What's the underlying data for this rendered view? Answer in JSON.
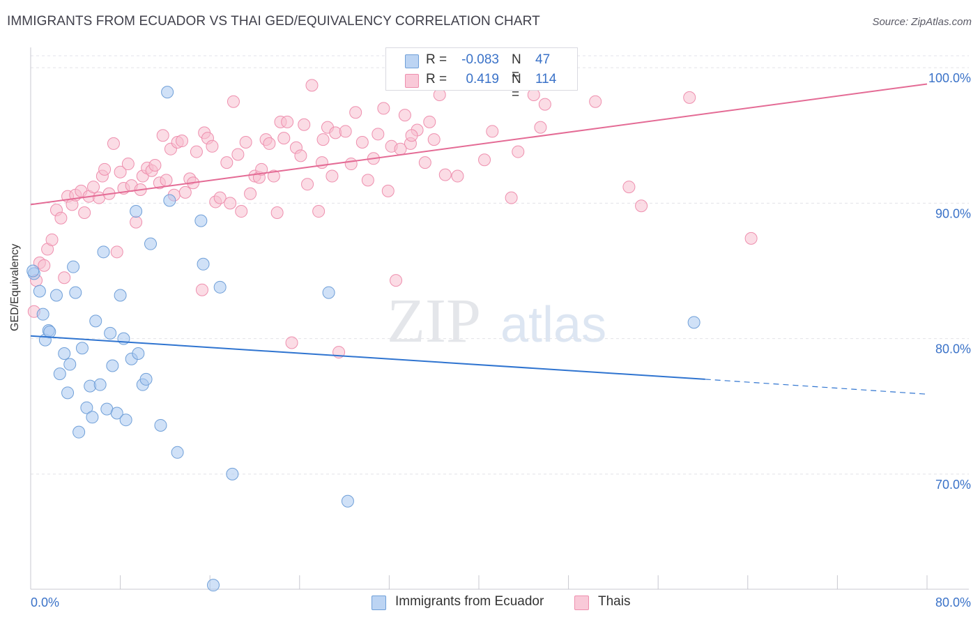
{
  "title": "IMMIGRANTS FROM ECUADOR VS THAI GED/EQUIVALENCY CORRELATION CHART",
  "source": "Source: ZipAtlas.com",
  "watermark": {
    "zip": "ZIP",
    "atlas": "atlas"
  },
  "legend": {
    "r_label": "R =",
    "n_label": "N =",
    "series": [
      {
        "r": "-0.083",
        "n": "47"
      },
      {
        "r": "0.419",
        "n": "114"
      }
    ]
  },
  "bottom_legend": [
    "Immigrants from Ecuador",
    "Thais"
  ],
  "colors": {
    "ecuador_fill": "#aac8f0",
    "ecuador_stroke": "#6f9fd8",
    "ecuador_line": "#2f74d0",
    "thai_fill": "#f7bfd0",
    "thai_stroke": "#ee8fae",
    "thai_line": "#e46b95",
    "axis_text": "#3a72c8",
    "grid": "#e2e2e8"
  },
  "chart_data": {
    "type": "scatter",
    "title": "IMMIGRANTS FROM ECUADOR VS THAI GED/EQUIVALENCY CORRELATION CHART",
    "xlabel": "",
    "ylabel": "GED/Equivalency",
    "xlim": [
      0,
      80
    ],
    "ylim": [
      61.5,
      101.5
    ],
    "x_tick_labels": [
      "0.0%",
      "80.0%"
    ],
    "y_ticks": [
      70,
      80,
      90,
      100
    ],
    "y_tick_labels": [
      "70.0%",
      "80.0%",
      "90.0%",
      "100.0%"
    ],
    "grid": "horizontal dashed",
    "legend_position": "top-center",
    "series": [
      {
        "name": "Immigrants from Ecuador",
        "r": -0.083,
        "n": 47,
        "trend": {
          "x0": 0,
          "y0": 80.2,
          "x1": 60.2,
          "y1": 77.0,
          "dashed_to_x": 80,
          "dashed_to_y": 75.9
        },
        "points": [
          [
            0.3,
            84.8
          ],
          [
            0.8,
            83.5
          ],
          [
            1.1,
            81.8
          ],
          [
            1.3,
            79.9
          ],
          [
            1.6,
            80.6
          ],
          [
            1.7,
            80.5
          ],
          [
            2.3,
            83.2
          ],
          [
            2.6,
            77.4
          ],
          [
            3.0,
            78.9
          ],
          [
            3.3,
            76.0
          ],
          [
            3.5,
            78.1
          ],
          [
            3.8,
            85.3
          ],
          [
            4.0,
            83.4
          ],
          [
            4.3,
            73.1
          ],
          [
            4.6,
            79.3
          ],
          [
            5.0,
            74.9
          ],
          [
            5.3,
            76.5
          ],
          [
            5.5,
            74.2
          ],
          [
            5.8,
            81.3
          ],
          [
            6.2,
            76.6
          ],
          [
            6.5,
            86.4
          ],
          [
            6.8,
            74.8
          ],
          [
            7.1,
            80.4
          ],
          [
            7.3,
            78.0
          ],
          [
            7.7,
            74.5
          ],
          [
            8.0,
            83.2
          ],
          [
            8.3,
            80.0
          ],
          [
            8.5,
            74.0
          ],
          [
            9.0,
            78.5
          ],
          [
            9.4,
            89.4
          ],
          [
            9.6,
            78.9
          ],
          [
            10.0,
            76.6
          ],
          [
            10.3,
            77.0
          ],
          [
            10.7,
            87.0
          ],
          [
            11.6,
            73.6
          ],
          [
            12.2,
            98.2
          ],
          [
            12.4,
            90.2
          ],
          [
            13.1,
            71.6
          ],
          [
            15.2,
            88.7
          ],
          [
            15.4,
            85.5
          ],
          [
            16.3,
            61.8
          ],
          [
            16.9,
            83.8
          ],
          [
            18.0,
            70.0
          ],
          [
            26.6,
            83.4
          ],
          [
            28.3,
            68.0
          ],
          [
            59.2,
            81.2
          ],
          [
            0.2,
            85.0
          ]
        ]
      },
      {
        "name": "Thais",
        "r": 0.419,
        "n": 114,
        "trend": {
          "x0": 0,
          "y0": 89.9,
          "x1": 80,
          "y1": 98.8
        },
        "points": [
          [
            0.3,
            82.0
          ],
          [
            0.5,
            84.3
          ],
          [
            0.8,
            85.6
          ],
          [
            1.2,
            85.4
          ],
          [
            1.5,
            86.6
          ],
          [
            1.9,
            87.3
          ],
          [
            2.3,
            89.5
          ],
          [
            2.7,
            88.9
          ],
          [
            3.0,
            84.5
          ],
          [
            3.3,
            90.5
          ],
          [
            3.7,
            89.9
          ],
          [
            4.0,
            90.6
          ],
          [
            4.5,
            90.9
          ],
          [
            4.8,
            89.3
          ],
          [
            5.2,
            90.5
          ],
          [
            5.6,
            91.2
          ],
          [
            6.1,
            90.4
          ],
          [
            6.4,
            92.0
          ],
          [
            6.6,
            92.5
          ],
          [
            7.0,
            90.7
          ],
          [
            7.4,
            94.4
          ],
          [
            7.7,
            86.4
          ],
          [
            8.0,
            92.3
          ],
          [
            8.3,
            91.1
          ],
          [
            8.7,
            92.9
          ],
          [
            9.0,
            91.3
          ],
          [
            9.4,
            88.6
          ],
          [
            9.8,
            91.0
          ],
          [
            10.0,
            92.0
          ],
          [
            10.4,
            92.6
          ],
          [
            10.8,
            92.4
          ],
          [
            11.1,
            92.8
          ],
          [
            11.5,
            91.5
          ],
          [
            11.8,
            95.0
          ],
          [
            12.1,
            91.7
          ],
          [
            12.5,
            94.0
          ],
          [
            12.8,
            90.6
          ],
          [
            13.1,
            94.5
          ],
          [
            13.5,
            94.6
          ],
          [
            13.8,
            90.8
          ],
          [
            14.2,
            91.8
          ],
          [
            14.5,
            91.5
          ],
          [
            14.8,
            93.8
          ],
          [
            15.3,
            83.6
          ],
          [
            15.5,
            95.2
          ],
          [
            15.8,
            94.8
          ],
          [
            16.2,
            94.2
          ],
          [
            16.5,
            90.1
          ],
          [
            16.9,
            90.4
          ],
          [
            17.5,
            93.0
          ],
          [
            17.8,
            90.0
          ],
          [
            18.1,
            97.5
          ],
          [
            18.5,
            93.6
          ],
          [
            18.8,
            89.4
          ],
          [
            19.2,
            94.5
          ],
          [
            19.6,
            90.7
          ],
          [
            20.0,
            92.0
          ],
          [
            20.4,
            91.9
          ],
          [
            20.6,
            92.5
          ],
          [
            21.0,
            94.7
          ],
          [
            21.3,
            94.4
          ],
          [
            21.7,
            92.0
          ],
          [
            22.0,
            89.3
          ],
          [
            22.3,
            96.0
          ],
          [
            22.6,
            94.8
          ],
          [
            22.9,
            96.0
          ],
          [
            23.3,
            79.7
          ],
          [
            23.7,
            94.1
          ],
          [
            24.1,
            93.5
          ],
          [
            24.4,
            95.8
          ],
          [
            24.7,
            91.4
          ],
          [
            25.1,
            98.7
          ],
          [
            25.7,
            89.4
          ],
          [
            26.1,
            94.7
          ],
          [
            26.5,
            95.6
          ],
          [
            26.9,
            92.0
          ],
          [
            27.2,
            95.2
          ],
          [
            27.5,
            79.0
          ],
          [
            28.1,
            95.3
          ],
          [
            28.6,
            92.9
          ],
          [
            29.0,
            96.7
          ],
          [
            29.6,
            94.5
          ],
          [
            30.1,
            91.7
          ],
          [
            30.6,
            93.3
          ],
          [
            31.0,
            95.1
          ],
          [
            31.5,
            97.0
          ],
          [
            31.9,
            90.9
          ],
          [
            32.2,
            94.2
          ],
          [
            32.6,
            84.3
          ],
          [
            33.0,
            94.0
          ],
          [
            33.4,
            96.5
          ],
          [
            33.9,
            94.4
          ],
          [
            34.5,
            95.4
          ],
          [
            35.2,
            93.0
          ],
          [
            35.6,
            96.0
          ],
          [
            36.0,
            94.7
          ],
          [
            36.5,
            98.0
          ],
          [
            37.0,
            92.1
          ],
          [
            38.1,
            92.0
          ],
          [
            40.5,
            93.2
          ],
          [
            41.2,
            95.3
          ],
          [
            42.9,
            90.4
          ],
          [
            44.9,
            98.0
          ],
          [
            45.5,
            95.6
          ],
          [
            45.9,
            97.3
          ],
          [
            47.4,
            100.0
          ],
          [
            50.4,
            97.5
          ],
          [
            53.4,
            91.2
          ],
          [
            54.5,
            89.8
          ],
          [
            58.8,
            97.8
          ],
          [
            64.3,
            87.4
          ],
          [
            43.5,
            93.8
          ],
          [
            34.0,
            95.0
          ],
          [
            26.0,
            93.0
          ]
        ]
      }
    ]
  }
}
